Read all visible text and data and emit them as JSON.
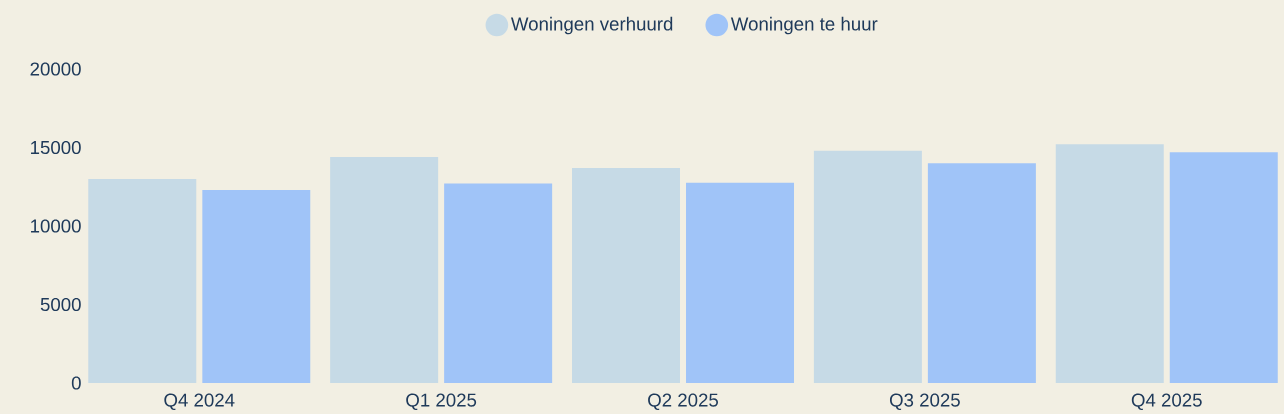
{
  "chart_data": {
    "type": "bar",
    "categories": [
      "Q4 2024",
      "Q1 2025",
      "Q2 2025",
      "Q3 2025",
      "Q4 2025"
    ],
    "series": [
      {
        "name": "Woningen verhuurd",
        "color": "#c6dae6",
        "values": [
          13000,
          14400,
          13700,
          14800,
          15200
        ]
      },
      {
        "name": "Woningen te huur",
        "color": "#a0c4f8",
        "values": [
          12300,
          12700,
          12750,
          14000,
          14700
        ]
      }
    ],
    "ylim": [
      0,
      20000
    ],
    "yticks": [
      0,
      5000,
      10000,
      15000,
      20000
    ],
    "legend": "top"
  }
}
